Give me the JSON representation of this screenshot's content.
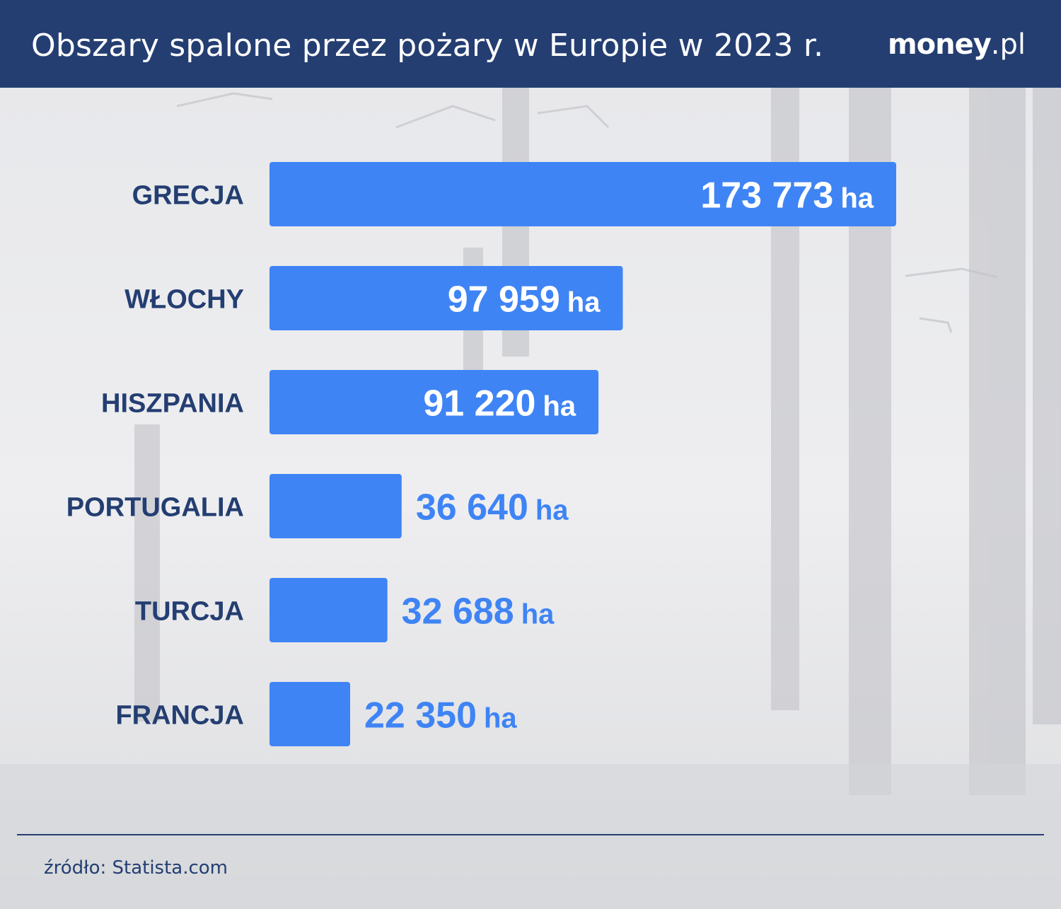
{
  "header": {
    "title": "Obszary spalone przez pożary w Europie w 2023 r.",
    "brand_main": "money",
    "brand_suffix": ".pl"
  },
  "source": "źródło: Statista.com",
  "colors": {
    "header_bg": "#243e72",
    "bar": "#3f84f5",
    "label": "#243e72",
    "value_outside": "#3f84f5",
    "value_inside": "#ffffff"
  },
  "chart_data": {
    "type": "bar",
    "orientation": "horizontal",
    "categories": [
      "GRECJA",
      "WŁOCHY",
      "HISZPANIA",
      "PORTUGALIA",
      "TURCJA",
      "FRANCJA"
    ],
    "values": [
      173773,
      97959,
      91220,
      36640,
      32688,
      22350
    ],
    "value_labels": [
      "173 773",
      "97 959",
      "91 220",
      "36 640",
      "32 688",
      "22 350"
    ],
    "unit": "ha",
    "grid": false,
    "legend": "none"
  }
}
